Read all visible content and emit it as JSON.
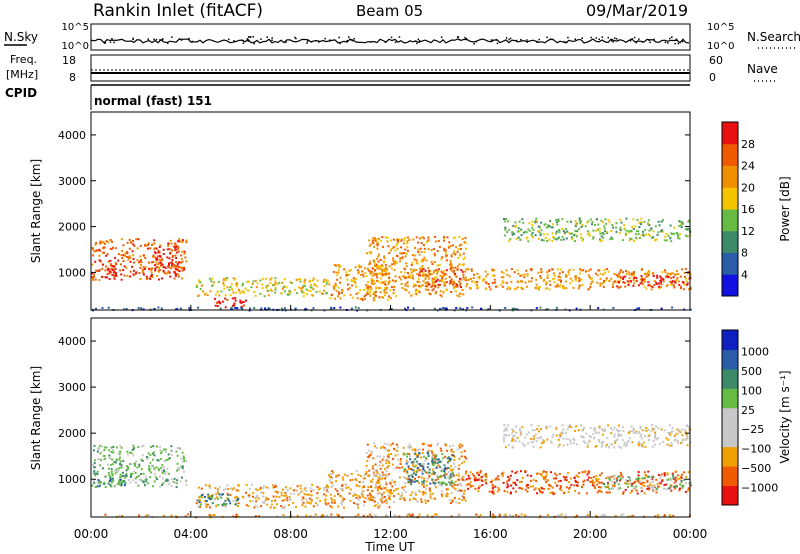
{
  "header": {
    "station": "Rankin Inlet (fitACF)",
    "beam": "Beam 05",
    "date": "09/Mar/2019"
  },
  "noise_panel": {
    "left_label": "N.Sky",
    "right_label": "N.Search",
    "ticks": [
      "10^5",
      "10^0"
    ]
  },
  "freq_panel": {
    "left_label_1": "Freq.",
    "left_label_2": "[MHz]",
    "left_ticks": [
      "18",
      "8"
    ],
    "right_label": "Nave",
    "right_ticks": [
      "60",
      "0"
    ]
  },
  "cpid": {
    "label": "CPID",
    "value": "normal (fast) 151"
  },
  "x_axis": {
    "label": "Time UT",
    "ticks": [
      "00:00",
      "04:00",
      "08:00",
      "12:00",
      "16:00",
      "20:00",
      "00:00"
    ]
  },
  "colors": {
    "power": [
      "#1010e0",
      "#2a5caa",
      "#3d8a6a",
      "#66bb44",
      "#f5c400",
      "#f09000",
      "#f05a00",
      "#e81010"
    ],
    "velocity": [
      "#e81010",
      "#f05a00",
      "#f0a000",
      "#c8c8c8",
      "#c8c8c8",
      "#66bb44",
      "#3d8a6a",
      "#2a5caa",
      "#1020c0"
    ]
  },
  "chart_data": [
    {
      "type": "heatmap",
      "name": "power",
      "title": "",
      "xlabel": "",
      "ylabel": "Slant Range [km]",
      "xlim": [
        0,
        24
      ],
      "ylim": [
        180,
        4500
      ],
      "y_ticks": [
        "1000",
        "2000",
        "3000",
        "4000"
      ],
      "colorbar_label": "Power [dB]",
      "colorbar_ticks": [
        "4",
        "8",
        "12",
        "16",
        "20",
        "24",
        "28"
      ],
      "regions": [
        {
          "t0": 0.0,
          "t1": 3.8,
          "r0": 850,
          "r1": 1750,
          "level": 6
        },
        {
          "t0": 0.3,
          "t1": 1.0,
          "r0": 900,
          "r1": 1300,
          "level": 7
        },
        {
          "t0": 2.5,
          "t1": 3.5,
          "r0": 1000,
          "r1": 1600,
          "level": 7
        },
        {
          "t0": 4.2,
          "t1": 9.5,
          "r0": 500,
          "r1": 900,
          "level": 4
        },
        {
          "t0": 4.8,
          "t1": 6.2,
          "r0": 250,
          "r1": 500,
          "level": 7
        },
        {
          "t0": 9.5,
          "t1": 12.0,
          "r0": 400,
          "r1": 1200,
          "level": 5
        },
        {
          "t0": 11.0,
          "t1": 15.0,
          "r0": 500,
          "r1": 1800,
          "level": 5
        },
        {
          "t0": 13.0,
          "t1": 15.0,
          "r0": 700,
          "r1": 1100,
          "level": 6
        },
        {
          "t0": 15.0,
          "t1": 24.0,
          "r0": 650,
          "r1": 1100,
          "level": 5
        },
        {
          "t0": 21.0,
          "t1": 24.0,
          "r0": 700,
          "r1": 950,
          "level": 7
        },
        {
          "t0": 16.5,
          "t1": 24.0,
          "r0": 1700,
          "r1": 2200,
          "level": 3
        },
        {
          "t0": 0.0,
          "t1": 24.0,
          "r0": 190,
          "r1": 260,
          "level": 1
        }
      ]
    },
    {
      "type": "heatmap",
      "name": "velocity",
      "title": "",
      "xlabel": "Time UT",
      "ylabel": "Slant Range [km]",
      "xlim": [
        0,
        24
      ],
      "ylim": [
        180,
        4500
      ],
      "y_ticks": [
        "1000",
        "2000",
        "3000",
        "4000"
      ],
      "colorbar_label": "Velocity [m s⁻¹]",
      "colorbar_ticks": [
        "1000",
        "500",
        "100",
        "25",
        "−25",
        "−100",
        "−500",
        "−1000"
      ],
      "regions": [
        {
          "t0": 0.0,
          "t1": 3.8,
          "r0": 850,
          "r1": 1750,
          "level": 5
        },
        {
          "t0": 0.0,
          "t1": 1.5,
          "r0": 850,
          "r1": 1100,
          "level": 6
        },
        {
          "t0": 4.2,
          "t1": 9.5,
          "r0": 400,
          "r1": 900,
          "level": 2
        },
        {
          "t0": 4.2,
          "t1": 6.0,
          "r0": 450,
          "r1": 700,
          "level": 6
        },
        {
          "t0": 9.5,
          "t1": 12.0,
          "r0": 400,
          "r1": 1200,
          "level": 2
        },
        {
          "t0": 11.0,
          "t1": 15.0,
          "r0": 500,
          "r1": 1800,
          "level": 2
        },
        {
          "t0": 12.5,
          "t1": 14.5,
          "r0": 900,
          "r1": 1600,
          "level": 6
        },
        {
          "t0": 15.0,
          "t1": 24.0,
          "r0": 700,
          "r1": 1200,
          "level": 1
        },
        {
          "t0": 20.5,
          "t1": 24.0,
          "r0": 800,
          "r1": 1100,
          "level": 5
        },
        {
          "t0": 16.5,
          "t1": 24.0,
          "r0": 1700,
          "r1": 2200,
          "level": 3
        },
        {
          "t0": 0.0,
          "t1": 24.0,
          "r0": 190,
          "r1": 260,
          "level": 2
        }
      ]
    }
  ]
}
